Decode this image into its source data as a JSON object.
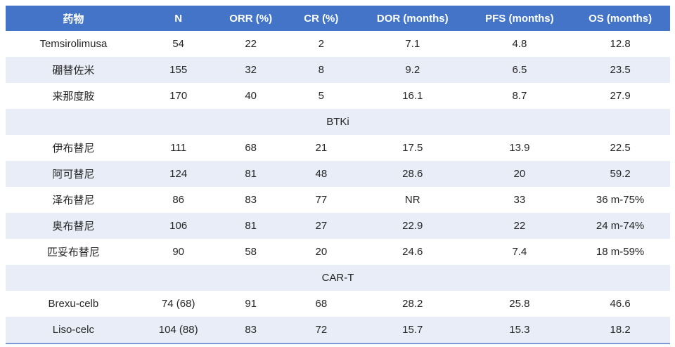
{
  "table": {
    "columns": [
      {
        "label": "药物"
      },
      {
        "label": "N"
      },
      {
        "label": "ORR (%)"
      },
      {
        "label": "CR (%)"
      },
      {
        "label": "DOR (months)"
      },
      {
        "label": "PFS (months)"
      },
      {
        "label": "OS (months)"
      }
    ],
    "rows": [
      {
        "type": "data",
        "cells": [
          "Temsirolimusa",
          "54",
          "22",
          "2",
          "7.1",
          "4.8",
          "12.8"
        ]
      },
      {
        "type": "data",
        "cells": [
          "硼替佐米",
          "155",
          "32",
          "8",
          "9.2",
          "6.5",
          "23.5"
        ]
      },
      {
        "type": "data",
        "cells": [
          "来那度胺",
          "170",
          "40",
          "5",
          "16.1",
          "8.7",
          "27.9"
        ]
      },
      {
        "type": "section",
        "label": "BTKi"
      },
      {
        "type": "data",
        "cells": [
          "伊布替尼",
          "111",
          "68",
          "21",
          "17.5",
          "13.9",
          "22.5"
        ]
      },
      {
        "type": "data",
        "cells": [
          "阿可替尼",
          "124",
          "81",
          "48",
          "28.6",
          "20",
          "59.2"
        ]
      },
      {
        "type": "data",
        "cells": [
          "泽布替尼",
          "86",
          "83",
          "77",
          "NR",
          "33",
          "36 m-75%"
        ]
      },
      {
        "type": "data",
        "cells": [
          "奥布替尼",
          "106",
          "81",
          "27",
          "22.9",
          "22",
          "24 m-74%"
        ]
      },
      {
        "type": "data",
        "cells": [
          "匹妥布替尼",
          "90",
          "58",
          "20",
          "24.6",
          "7.4",
          "18 m-59%"
        ]
      },
      {
        "type": "section",
        "label": "CAR-T"
      },
      {
        "type": "data",
        "cells": [
          "Brexu-celb",
          "74 (68)",
          "91",
          "68",
          "28.2",
          "25.8",
          "46.6"
        ]
      },
      {
        "type": "data",
        "cells": [
          "Liso-celc",
          "104 (88)",
          "83",
          "72",
          "15.7",
          "15.3",
          "18.2"
        ]
      }
    ],
    "colors": {
      "header_bg": "#4374C8",
      "header_text": "#FFFFFF",
      "band_bg": "#E9EDF7",
      "row_bg": "#FFFFFF",
      "bottom_border": "#7E9BD9",
      "cell_text": "#262626"
    }
  }
}
